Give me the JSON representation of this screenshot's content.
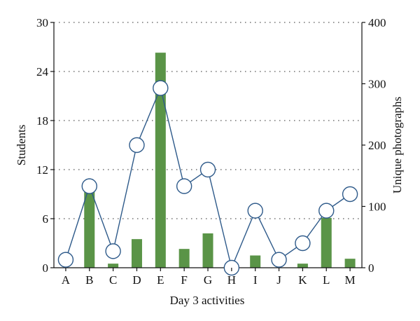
{
  "chart_data": {
    "type": "bar+line",
    "categories": [
      "A",
      "B",
      "C",
      "D",
      "E",
      "F",
      "G",
      "H",
      "I",
      "J",
      "K",
      "L",
      "M"
    ],
    "series": [
      {
        "name": "Students",
        "type": "bar",
        "axis": "left",
        "values": [
          0,
          9.8,
          0.5,
          3.5,
          26.3,
          2.3,
          4.2,
          0,
          1.5,
          0,
          0.5,
          6.1,
          1.1
        ],
        "color": "#5a9447"
      },
      {
        "name": "Unique photographs",
        "type": "line",
        "axis": "right",
        "values": [
          13,
          133,
          27,
          200,
          293,
          133,
          160,
          0,
          93,
          13,
          40,
          93,
          120
        ],
        "color": "#2e5a8a"
      }
    ],
    "xlabel": "Day 3 activities",
    "ylabel_left": "Students",
    "ylabel_right": "Unique photographs",
    "ylim_left": [
      0,
      30
    ],
    "ylim_right": [
      0,
      400
    ],
    "yticks_left": [
      "0",
      "6",
      "12",
      "18",
      "24",
      "30"
    ],
    "yticks_right": [
      "0",
      "100",
      "200",
      "300",
      "400"
    ],
    "grid": "horizontal-dotted",
    "legend": "none"
  }
}
